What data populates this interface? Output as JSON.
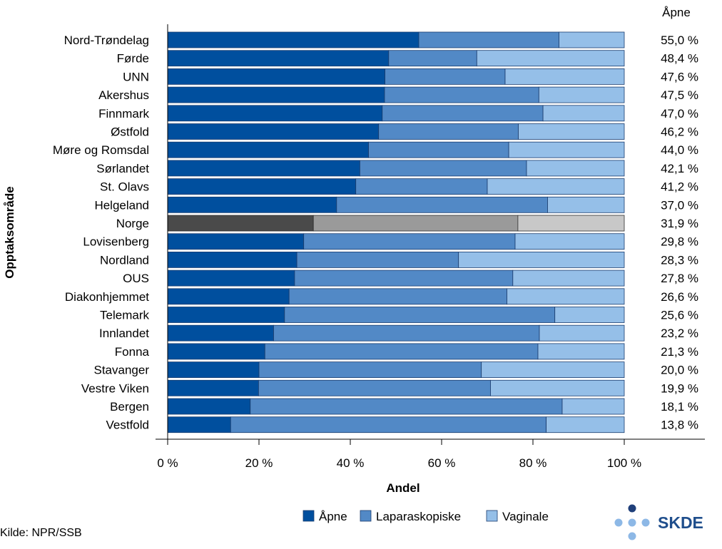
{
  "chart_data": {
    "type": "bar",
    "orientation": "horizontal",
    "stacked": true,
    "ylabel": "Opptaksområde",
    "xlabel": "Andel",
    "xlim": [
      0,
      100
    ],
    "x_ticks": [
      "0 %",
      "20 %",
      "40 %",
      "60 %",
      "80 %",
      "100 %"
    ],
    "value_column_header": "Åpne",
    "categories": [
      "Nord-Trøndelag",
      "Førde",
      "UNN",
      "Akershus",
      "Finnmark",
      "Østfold",
      "Møre og Romsdal",
      "Sørlandet",
      "St. Olavs",
      "Helgeland",
      "Norge",
      "Lovisenberg",
      "Nordland",
      "OUS",
      "Diakonhjemmet",
      "Telemark",
      "Innlandet",
      "Fonna",
      "Stavanger",
      "Vestre Viken",
      "Bergen",
      "Vestfold"
    ],
    "highlight_category": "Norge",
    "value_labels": [
      "55,0 %",
      "48,4 %",
      "47,6 %",
      "47,5 %",
      "47,0 %",
      "46,2 %",
      "44,0 %",
      "42,1 %",
      "41,2 %",
      "37,0 %",
      "31,9 %",
      "29,8 %",
      "28,3 %",
      "27,8 %",
      "26,6 %",
      "25,6 %",
      "23,2 %",
      "21,3 %",
      "20,0 %",
      "19,9 %",
      "18,1 %",
      "13,8 %"
    ],
    "series": [
      {
        "name": "Åpne",
        "color": "#004f9e",
        "highlight_color": "#4a4a4a",
        "values": [
          55.0,
          48.4,
          47.6,
          47.5,
          47.0,
          46.2,
          44.0,
          42.1,
          41.2,
          37.0,
          31.9,
          29.8,
          28.3,
          27.8,
          26.6,
          25.6,
          23.2,
          21.3,
          20.0,
          19.9,
          18.1,
          13.8
        ]
      },
      {
        "name": "Laparaskopiske",
        "color": "#5289c6",
        "highlight_color": "#9a9a9a",
        "values": [
          30.7,
          19.3,
          26.3,
          33.8,
          35.2,
          30.6,
          30.7,
          36.5,
          28.8,
          46.2,
          44.8,
          46.3,
          35.4,
          47.8,
          47.7,
          59.2,
          58.2,
          59.8,
          48.7,
          50.8,
          68.3,
          69.1
        ]
      },
      {
        "name": "Vaginale",
        "color": "#95bfe8",
        "highlight_color": "#c8c8c8",
        "values": [
          14.3,
          32.3,
          26.1,
          18.7,
          17.8,
          23.2,
          25.3,
          21.4,
          30.0,
          16.8,
          23.3,
          23.9,
          36.3,
          24.4,
          25.7,
          15.2,
          18.6,
          18.9,
          31.3,
          29.3,
          13.6,
          17.1
        ]
      }
    ]
  },
  "source_note": "Kilde: NPR/SSB",
  "logo_text": "SKDE",
  "logo_color": "#1f4e8c"
}
